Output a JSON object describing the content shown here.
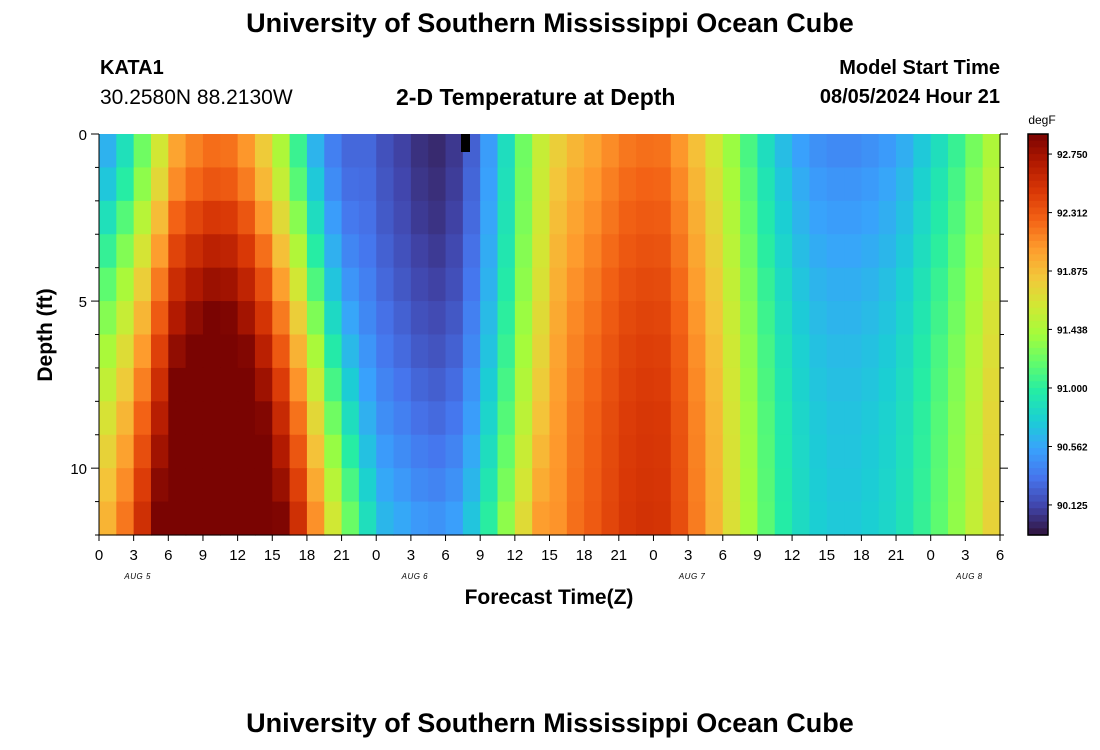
{
  "header": {
    "title": "University of Southern Mississippi Ocean Cube",
    "station_id": "KATA1",
    "coordinates": "30.2580N  88.2130W",
    "subtitle": "2-D Temperature at Depth",
    "model_start_label": "Model Start Time",
    "model_start_value": "08/05/2024 Hour 21"
  },
  "footer": {
    "title": "University of Southern Mississippi Ocean Cube"
  },
  "chart_data": {
    "type": "heatmap",
    "title": "2-D Temperature at Depth",
    "xlabel": "Forecast Time(Z)",
    "ylabel": "Depth (ft)",
    "x_unit": "hours UTC (Aug 4 21Z to Aug 8 06Z)",
    "x_tick_labels": [
      "0",
      "3",
      "6",
      "9",
      "12",
      "15",
      "18",
      "21",
      "0",
      "3",
      "6",
      "9",
      "12",
      "15",
      "18",
      "21",
      "0",
      "3",
      "6",
      "9",
      "12",
      "15",
      "18",
      "21",
      "0",
      "3",
      "6"
    ],
    "date_labels": [
      {
        "label": "AUG 5",
        "at_tick_index": 1
      },
      {
        "label": "AUG 6",
        "at_tick_index": 9
      },
      {
        "label": "AUG 7",
        "at_tick_index": 17
      },
      {
        "label": "AUG 8",
        "at_tick_index": 25
      }
    ],
    "y_ticks": [
      0,
      5,
      10
    ],
    "ylim": [
      0,
      12
    ],
    "depth_levels_ft": [
      0.5,
      1.5,
      2.5,
      3.5,
      4.5,
      5.5,
      6.5,
      7.5,
      8.5,
      9.5,
      10.5,
      11.5
    ],
    "colorbar": {
      "unit": "degF",
      "range": [
        89.9,
        92.9
      ],
      "tick_labels": [
        "92.750",
        "92.312",
        "91.875",
        "91.438",
        "91.000",
        "90.562",
        "90.125"
      ],
      "colors": [
        "#30123b",
        "#4145ab",
        "#4675ed",
        "#39a2fc",
        "#1bcfd4",
        "#24eca6",
        "#61fc6c",
        "#a4fc3b",
        "#d1e834",
        "#f3c63a",
        "#fe9b2d",
        "#f36315",
        "#d93806",
        "#b11901",
        "#7a0402"
      ]
    },
    "grid": false,
    "temperature_degF_by_depth": [
      [
        90.62,
        90.88,
        91.23,
        91.62,
        92.0,
        92.14,
        92.22,
        92.2,
        92.06,
        91.8,
        91.45,
        91.05,
        90.63,
        90.38,
        90.27,
        90.27,
        90.17,
        90.1,
        90.03,
        90.0,
        90.06,
        90.24,
        90.52,
        90.86,
        91.23,
        91.56,
        91.78,
        91.91,
        92.0,
        92.1,
        92.18,
        92.21,
        92.2,
        92.06,
        91.86,
        91.63,
        91.37,
        91.1,
        90.86,
        90.67,
        90.54,
        90.46,
        90.43,
        90.43,
        90.46,
        90.51,
        90.6,
        90.73,
        90.87,
        91.04,
        91.25,
        91.45
      ],
      [
        90.72,
        90.98,
        91.33,
        91.72,
        92.1,
        92.24,
        92.32,
        92.3,
        92.16,
        91.9,
        91.55,
        91.15,
        90.73,
        90.44,
        90.3,
        90.29,
        90.19,
        90.12,
        90.05,
        90.02,
        90.08,
        90.26,
        90.54,
        90.88,
        91.25,
        91.58,
        91.83,
        91.96,
        92.05,
        92.15,
        92.23,
        92.26,
        92.25,
        92.11,
        91.91,
        91.68,
        91.42,
        91.15,
        90.91,
        90.72,
        90.59,
        90.51,
        90.48,
        90.48,
        90.51,
        90.56,
        90.65,
        90.78,
        90.92,
        91.09,
        91.3,
        91.5
      ],
      [
        90.88,
        91.14,
        91.49,
        91.88,
        92.26,
        92.4,
        92.48,
        92.46,
        92.32,
        92.06,
        91.71,
        91.31,
        90.85,
        90.52,
        90.35,
        90.31,
        90.21,
        90.14,
        90.07,
        90.04,
        90.1,
        90.28,
        90.56,
        90.9,
        91.27,
        91.6,
        91.87,
        92.0,
        92.09,
        92.19,
        92.27,
        92.3,
        92.29,
        92.15,
        91.95,
        91.72,
        91.46,
        91.19,
        90.95,
        90.76,
        90.63,
        90.55,
        90.52,
        90.52,
        90.55,
        90.6,
        90.69,
        90.82,
        90.96,
        91.13,
        91.34,
        91.54
      ],
      [
        91.03,
        91.29,
        91.64,
        92.03,
        92.41,
        92.55,
        92.63,
        92.61,
        92.47,
        92.21,
        91.86,
        91.46,
        90.98,
        90.61,
        90.41,
        90.34,
        90.24,
        90.17,
        90.1,
        90.07,
        90.13,
        90.31,
        90.59,
        90.93,
        91.3,
        91.63,
        91.91,
        92.04,
        92.13,
        92.23,
        92.31,
        92.34,
        92.33,
        92.19,
        91.99,
        91.76,
        91.5,
        91.23,
        90.99,
        90.8,
        90.67,
        90.59,
        90.56,
        90.56,
        90.59,
        90.64,
        90.73,
        90.86,
        91.0,
        91.17,
        91.38,
        91.58
      ],
      [
        91.17,
        91.43,
        91.78,
        92.17,
        92.55,
        92.69,
        92.77,
        92.75,
        92.61,
        92.36,
        92.02,
        91.62,
        91.12,
        90.71,
        90.48,
        90.38,
        90.27,
        90.2,
        90.13,
        90.1,
        90.16,
        90.34,
        90.62,
        90.96,
        91.33,
        91.66,
        91.94,
        92.08,
        92.17,
        92.27,
        92.35,
        92.38,
        92.37,
        92.23,
        92.03,
        91.8,
        91.54,
        91.27,
        91.03,
        90.84,
        90.71,
        90.63,
        90.6,
        90.6,
        90.63,
        90.68,
        90.77,
        90.9,
        91.04,
        91.21,
        91.42,
        91.62
      ],
      [
        91.3,
        91.56,
        91.91,
        92.3,
        92.68,
        92.82,
        92.9,
        92.88,
        92.74,
        92.5,
        92.17,
        91.78,
        91.28,
        90.83,
        90.56,
        90.42,
        90.31,
        90.24,
        90.17,
        90.14,
        90.2,
        90.38,
        90.66,
        91.0,
        91.37,
        91.7,
        91.97,
        92.11,
        92.2,
        92.3,
        92.38,
        92.41,
        92.4,
        92.26,
        92.06,
        91.83,
        91.57,
        91.3,
        91.06,
        90.87,
        90.74,
        90.66,
        90.63,
        90.63,
        90.66,
        90.71,
        90.8,
        90.93,
        91.07,
        91.24,
        91.45,
        91.65
      ],
      [
        91.43,
        91.69,
        92.04,
        92.43,
        92.81,
        92.95,
        93.03,
        93.01,
        92.87,
        92.64,
        92.31,
        91.93,
        91.43,
        90.96,
        90.65,
        90.48,
        90.35,
        90.28,
        90.21,
        90.18,
        90.24,
        90.42,
        90.7,
        91.04,
        91.41,
        91.74,
        92.0,
        92.14,
        92.23,
        92.33,
        92.41,
        92.44,
        92.43,
        92.29,
        92.09,
        91.86,
        91.6,
        91.33,
        91.09,
        90.9,
        90.77,
        90.69,
        90.66,
        90.66,
        90.69,
        90.74,
        90.83,
        90.96,
        91.1,
        91.27,
        91.48,
        91.68
      ],
      [
        91.54,
        91.8,
        92.15,
        92.54,
        92.92,
        93.06,
        93.14,
        93.12,
        92.98,
        92.76,
        92.45,
        92.07,
        91.58,
        91.09,
        90.75,
        90.54,
        90.4,
        90.33,
        90.26,
        90.23,
        90.29,
        90.47,
        90.75,
        91.09,
        91.46,
        91.79,
        92.02,
        92.16,
        92.25,
        92.35,
        92.43,
        92.46,
        92.45,
        92.31,
        92.11,
        91.88,
        91.62,
        91.35,
        91.11,
        90.92,
        90.79,
        90.71,
        90.68,
        90.68,
        90.71,
        90.76,
        90.85,
        90.98,
        91.12,
        91.29,
        91.5,
        91.7
      ],
      [
        91.65,
        91.91,
        92.26,
        92.65,
        93.03,
        93.17,
        93.25,
        93.23,
        93.09,
        92.87,
        92.57,
        92.2,
        91.72,
        91.23,
        90.86,
        90.61,
        90.45,
        90.38,
        90.31,
        90.28,
        90.34,
        90.52,
        90.8,
        91.14,
        91.51,
        91.84,
        92.04,
        92.18,
        92.27,
        92.37,
        92.45,
        92.48,
        92.47,
        92.33,
        92.13,
        91.9,
        91.64,
        91.37,
        91.13,
        90.94,
        90.81,
        90.73,
        90.7,
        90.7,
        90.73,
        90.78,
        90.87,
        91.0,
        91.14,
        91.31,
        91.52,
        91.72
      ],
      [
        91.75,
        92.01,
        92.36,
        92.75,
        93.13,
        93.27,
        93.35,
        93.33,
        93.19,
        92.98,
        92.68,
        92.32,
        91.85,
        91.36,
        90.98,
        90.69,
        90.51,
        90.44,
        90.37,
        90.34,
        90.4,
        90.58,
        90.86,
        91.2,
        91.57,
        91.9,
        92.05,
        92.19,
        92.28,
        92.38,
        92.46,
        92.49,
        92.48,
        92.34,
        92.14,
        91.91,
        91.65,
        91.38,
        91.14,
        90.95,
        90.82,
        90.74,
        90.71,
        90.71,
        90.74,
        90.79,
        90.88,
        91.01,
        91.15,
        91.32,
        91.53,
        91.73
      ],
      [
        91.84,
        92.1,
        92.45,
        92.84,
        93.22,
        93.36,
        93.44,
        93.42,
        93.28,
        93.07,
        92.78,
        92.43,
        91.97,
        91.49,
        91.1,
        90.78,
        90.57,
        90.5,
        90.43,
        90.4,
        90.46,
        90.64,
        90.92,
        91.26,
        91.63,
        91.96,
        92.06,
        92.2,
        92.29,
        92.39,
        92.47,
        92.5,
        92.49,
        92.35,
        92.15,
        91.92,
        91.66,
        91.39,
        91.15,
        90.96,
        90.83,
        90.75,
        90.72,
        90.72,
        90.75,
        90.8,
        90.89,
        91.02,
        91.16,
        91.33,
        91.54,
        91.74
      ],
      [
        91.92,
        92.18,
        92.53,
        92.92,
        93.3,
        93.44,
        93.52,
        93.5,
        93.36,
        93.16,
        92.88,
        92.53,
        92.08,
        91.61,
        91.21,
        90.87,
        90.64,
        90.57,
        90.5,
        90.47,
        90.53,
        90.71,
        90.99,
        91.33,
        91.7,
        92.03,
        92.07,
        92.21,
        92.3,
        92.4,
        92.48,
        92.51,
        92.5,
        92.36,
        92.16,
        91.93,
        91.67,
        91.4,
        91.16,
        90.97,
        90.84,
        90.76,
        90.73,
        90.73,
        90.76,
        90.81,
        90.9,
        91.03,
        91.17,
        91.34,
        91.55,
        91.75
      ]
    ]
  }
}
